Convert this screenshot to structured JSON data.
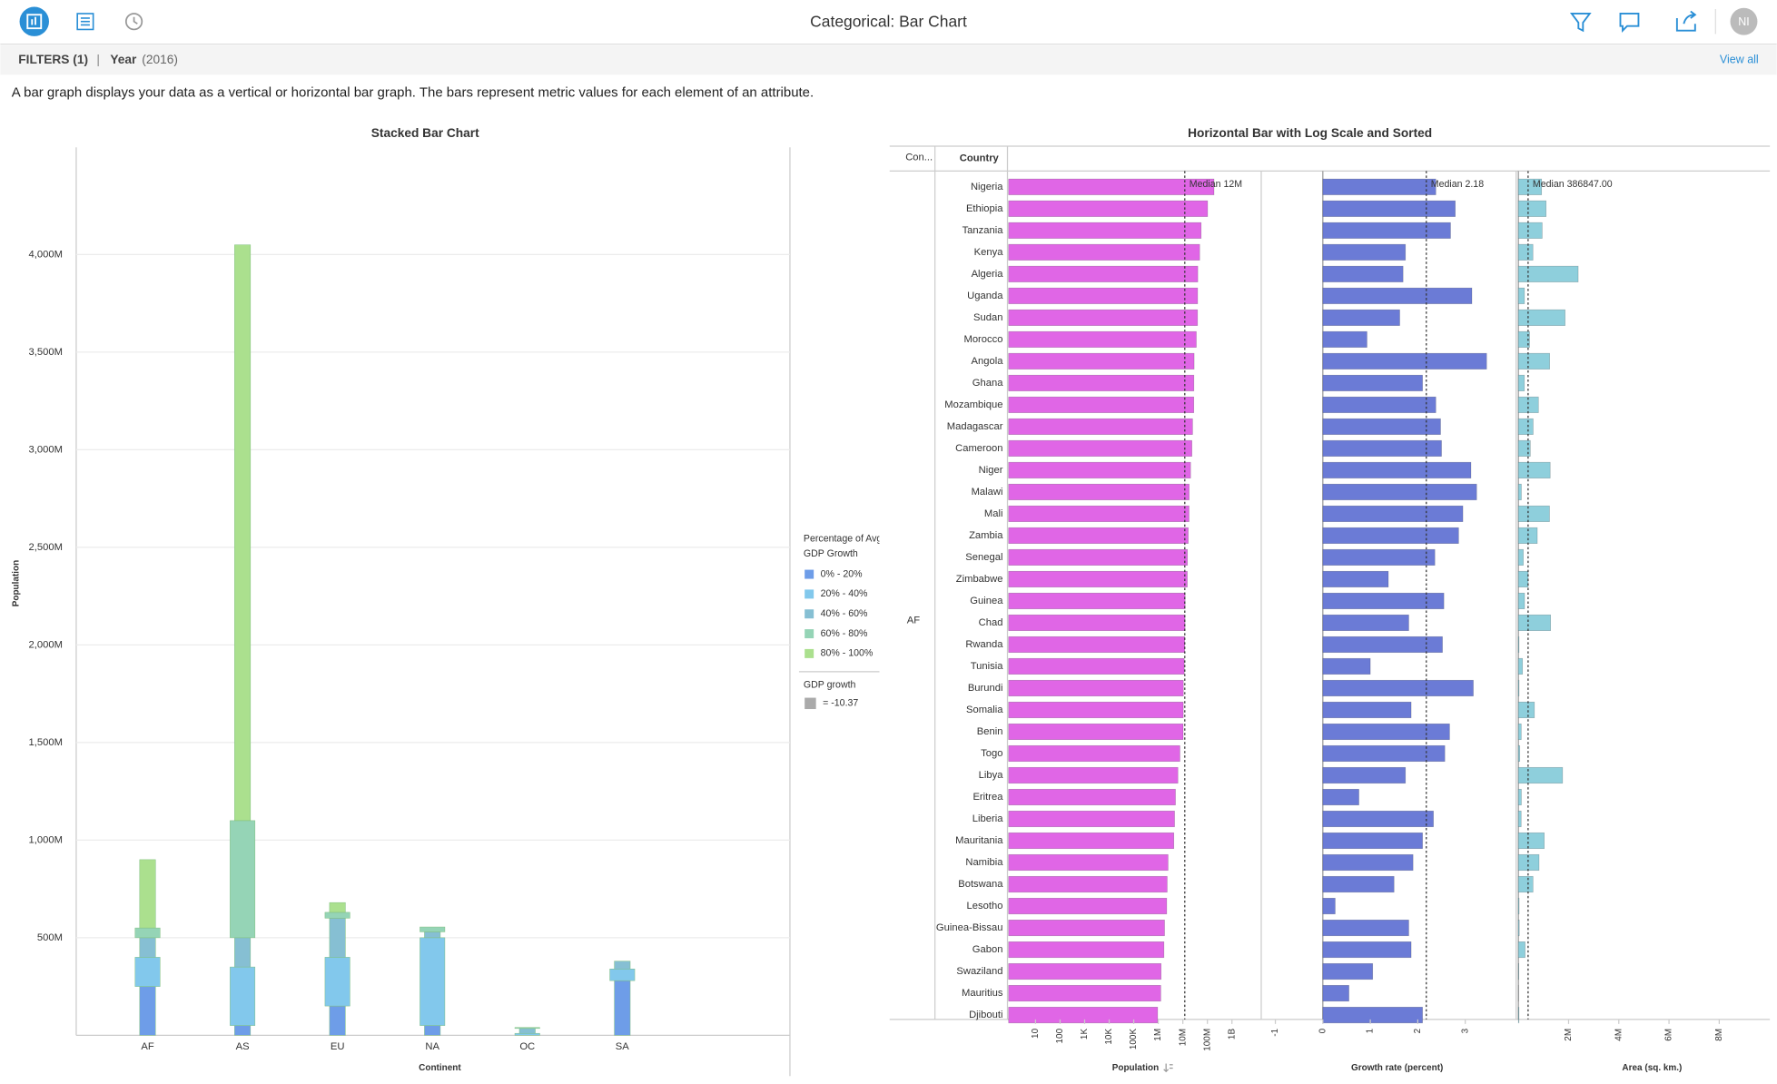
{
  "header": {
    "title": "Categorical: Bar Chart",
    "avatar": "NI"
  },
  "filters": {
    "label": "FILTERS (1)",
    "separator": "|",
    "field": "Year",
    "field_value": "(2016)",
    "view_all": "View all"
  },
  "description": "A bar graph displays your data as a vertical or horizontal bar graph. The bars represent metric values for each element of an attribute.",
  "chart_data": [
    {
      "type": "bar",
      "stacked": true,
      "title": "Stacked Bar Chart",
      "x_label": "Continent",
      "y_label": "Population",
      "categories": [
        "AF",
        "AS",
        "EU",
        "NA",
        "OC",
        "SA"
      ],
      "ylim": [
        0,
        4550000000
      ],
      "yticks": [
        {
          "value": 500000000,
          "label": "500M"
        },
        {
          "value": 1000000000,
          "label": "1,000M"
        },
        {
          "value": 1500000000,
          "label": "1,500M"
        },
        {
          "value": 2000000000,
          "label": "2,000M"
        },
        {
          "value": 2500000000,
          "label": "2,500M"
        },
        {
          "value": 3000000000,
          "label": "3,000M"
        },
        {
          "value": 3500000000,
          "label": "3,500M"
        },
        {
          "value": 4000000000,
          "label": "4,000M"
        }
      ],
      "grid": true,
      "legend_title": [
        "Percentage of Avg",
        "GDP Growth"
      ],
      "series": [
        {
          "name": "0% - 20%",
          "color": "#6e9de8",
          "values": [
            250000000,
            50000000,
            150000000,
            50000000,
            0,
            280000000
          ]
        },
        {
          "name": "20% - 40%",
          "color": "#82c8ec",
          "values": [
            150000000,
            300000000,
            250000000,
            450000000,
            10000000,
            60000000
          ]
        },
        {
          "name": "40% - 60%",
          "color": "#86bfd3",
          "values": [
            100000000,
            150000000,
            200000000,
            30000000,
            25000000,
            40000000
          ]
        },
        {
          "name": "60% - 80%",
          "color": "#95d4b6",
          "values": [
            50000000,
            600000000,
            30000000,
            25000000,
            5000000,
            0
          ]
        },
        {
          "name": "80% - 100%",
          "color": "#abe08e",
          "values": [
            350000000,
            2950000000,
            50000000,
            0,
            0,
            0
          ]
        }
      ],
      "size_legend": {
        "title": "GDP growth",
        "label": "= -10.37"
      }
    },
    {
      "type": "hbar",
      "title": "Horizontal Bar with Log Scale and Sorted",
      "group_header": "Con...",
      "category_header": "Country",
      "group": "AF",
      "categories": [
        "Nigeria",
        "Ethiopia",
        "Tanzania",
        "Kenya",
        "Algeria",
        "Uganda",
        "Sudan",
        "Morocco",
        "Angola",
        "Ghana",
        "Mozambique",
        "Madagascar",
        "Cameroon",
        "Niger",
        "Malawi",
        "Mali",
        "Zambia",
        "Senegal",
        "Zimbabwe",
        "Guinea",
        "Chad",
        "Rwanda",
        "Tunisia",
        "Burundi",
        "Somalia",
        "Benin",
        "Togo",
        "Libya",
        "Eritrea",
        "Liberia",
        "Mauritania",
        "Namibia",
        "Botswana",
        "Lesotho",
        "Guinea-Bissau",
        "Gabon",
        "Swaziland",
        "Mauritius",
        "Djibouti"
      ],
      "panels": [
        {
          "name": "Population",
          "color": "#e066e6",
          "log": true,
          "xlim": [
            0.8,
            14000000000
          ],
          "xticks": [
            10,
            100,
            {
              "value": 1000,
              "label": "1K"
            },
            {
              "value": 10000,
              "label": "10K"
            },
            {
              "value": 100000,
              "label": "100K"
            },
            {
              "value": 1000000,
              "label": "1M"
            },
            {
              "value": 10000000,
              "label": "10M"
            },
            {
              "value": 100000000,
              "label": "100M"
            },
            {
              "value": 1000000000,
              "label": "1B"
            }
          ],
          "median": {
            "value": 12000000,
            "label": "Median 12M"
          },
          "values": [
            186000000,
            102000000,
            55600000,
            48500000,
            40600000,
            40000000,
            39600000,
            35300000,
            28800000,
            28200000,
            28000000,
            24900000,
            23400000,
            20700000,
            18100000,
            17900000,
            16600000,
            15400000,
            15200000,
            12400000,
            12300000,
            11900000,
            11400000,
            10500000,
            10400000,
            10300000,
            7600000,
            6300000,
            5000000,
            4600000,
            4300000,
            2500000,
            2300000,
            2200000,
            1800000,
            1700000,
            1300000,
            1260000,
            940000
          ]
        },
        {
          "name": "Growth rate (percent)",
          "color": "#6b7bd6",
          "log": false,
          "xlim": [
            -1.25,
            4
          ],
          "xticks": [
            -1,
            0,
            1,
            2,
            3
          ],
          "median": {
            "value": 2.18,
            "label": "Median 2.18"
          },
          "values": [
            2.38,
            2.79,
            2.69,
            1.74,
            1.69,
            3.14,
            1.62,
            0.93,
            3.45,
            2.1,
            2.38,
            2.48,
            2.5,
            3.12,
            3.24,
            2.95,
            2.86,
            2.36,
            1.38,
            2.55,
            1.81,
            2.52,
            1.0,
            3.17,
            1.86,
            2.67,
            2.57,
            1.74,
            0.76,
            2.33,
            2.1,
            1.9,
            1.5,
            0.26,
            1.81,
            1.86,
            1.05,
            0.55,
            2.1
          ]
        },
        {
          "name": "Area (sq. km.)",
          "color": "#8ecfdc",
          "log": false,
          "xlim": [
            0,
            8800000
          ],
          "xticks": [
            {
              "value": 2000000,
              "label": "2M"
            },
            {
              "value": 4000000,
              "label": "4M"
            },
            {
              "value": 6000000,
              "label": "6M"
            },
            {
              "value": 8000000,
              "label": "8M"
            }
          ],
          "median": {
            "value": 386847,
            "label": "Median 386847.00"
          },
          "values": [
            924000,
            1104000,
            947000,
            580000,
            2382000,
            241000,
            1861000,
            446000,
            1247000,
            239000,
            799000,
            587000,
            475000,
            1267000,
            118000,
            1240000,
            753000,
            197000,
            391000,
            246000,
            1284000,
            26000,
            164000,
            28000,
            638000,
            113000,
            57000,
            1760000,
            118000,
            111000,
            1031000,
            824000,
            582000,
            30000,
            36000,
            268000,
            17000,
            2000,
            23000
          ]
        }
      ]
    }
  ]
}
